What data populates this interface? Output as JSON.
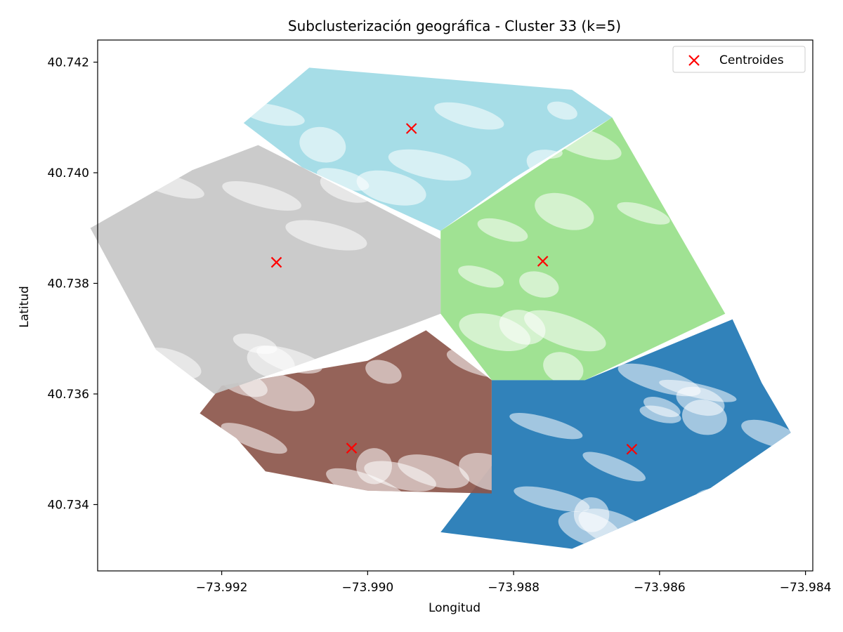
{
  "chart_data": {
    "type": "scatter",
    "title": "Subclusterización geográfica - Cluster 33 (k=5)",
    "xlabel": "Longitud",
    "ylabel": "Latitud",
    "xlim": [
      -73.9937,
      -73.9839
    ],
    "ylim": [
      40.7328,
      40.7424
    ],
    "xticks": [
      -73.992,
      -73.99,
      -73.988,
      -73.986,
      -73.984
    ],
    "xtick_labels": [
      "−73.992",
      "−73.990",
      "−73.988",
      "−73.986",
      "−73.984"
    ],
    "yticks": [
      40.734,
      40.736,
      40.738,
      40.74,
      40.742
    ],
    "ytick_labels": [
      "40.734",
      "40.736",
      "40.738",
      "40.740",
      "40.742"
    ],
    "grid": false,
    "legend": {
      "position": "top-right",
      "entries": [
        "Centroides"
      ]
    },
    "clusters": [
      {
        "color": "#1f77b4",
        "centroid": [
          -73.98638,
          40.735
        ],
        "region": [
          [
            -73.9883,
            40.73625
          ],
          [
            -73.98702,
            40.73625
          ],
          [
            -73.985,
            40.73735
          ],
          [
            -73.9846,
            40.7362
          ],
          [
            -73.9842,
            40.7353
          ],
          [
            -73.9853,
            40.7343
          ],
          [
            -73.9865,
            40.7336
          ],
          [
            -73.9872,
            40.7332
          ],
          [
            -73.989,
            40.7335
          ],
          [
            -73.9883,
            40.7347
          ]
        ]
      },
      {
        "color": "#8c564b",
        "centroid": [
          -73.99022,
          40.73502
        ],
        "region": [
          [
            -73.9923,
            40.73565
          ],
          [
            -73.992,
            40.73615
          ],
          [
            -73.99,
            40.7366
          ],
          [
            -73.9892,
            40.73715
          ],
          [
            -73.9883,
            40.73625
          ],
          [
            -73.9883,
            40.7342
          ],
          [
            -73.99,
            40.73425
          ],
          [
            -73.9914,
            40.7346
          ],
          [
            -73.9918,
            40.7352
          ]
        ]
      },
      {
        "color": "#c7c7c7",
        "centroid": [
          -73.99125,
          40.73838
        ],
        "region": [
          [
            -73.9909,
            40.7401
          ],
          [
            -73.989,
            40.7388
          ],
          [
            -73.989,
            40.73745
          ],
          [
            -73.9895,
            40.7372
          ],
          [
            -73.991,
            40.7365
          ],
          [
            -73.9921,
            40.736
          ],
          [
            -73.9929,
            40.7368
          ],
          [
            -73.9938,
            40.739
          ],
          [
            -73.9924,
            40.74005
          ],
          [
            -73.9915,
            40.7405
          ]
        ]
      },
      {
        "color": "#9edae5",
        "centroid": [
          -73.9894,
          40.7408
        ],
        "region": [
          [
            -73.9908,
            40.7419
          ],
          [
            -73.9872,
            40.7415
          ],
          [
            -73.98665,
            40.741
          ],
          [
            -73.988,
            40.7399
          ],
          [
            -73.989,
            40.73895
          ],
          [
            -73.9909,
            40.7401
          ],
          [
            -73.9917,
            40.7409
          ]
        ]
      },
      {
        "color": "#98df8a",
        "centroid": [
          -73.9876,
          40.7384
        ],
        "region": [
          [
            -73.989,
            40.73895
          ],
          [
            -73.98665,
            40.741
          ],
          [
            -73.9851,
            40.73745
          ],
          [
            -73.98702,
            40.73625
          ],
          [
            -73.9883,
            40.73625
          ],
          [
            -73.989,
            40.73745
          ]
        ]
      }
    ]
  }
}
